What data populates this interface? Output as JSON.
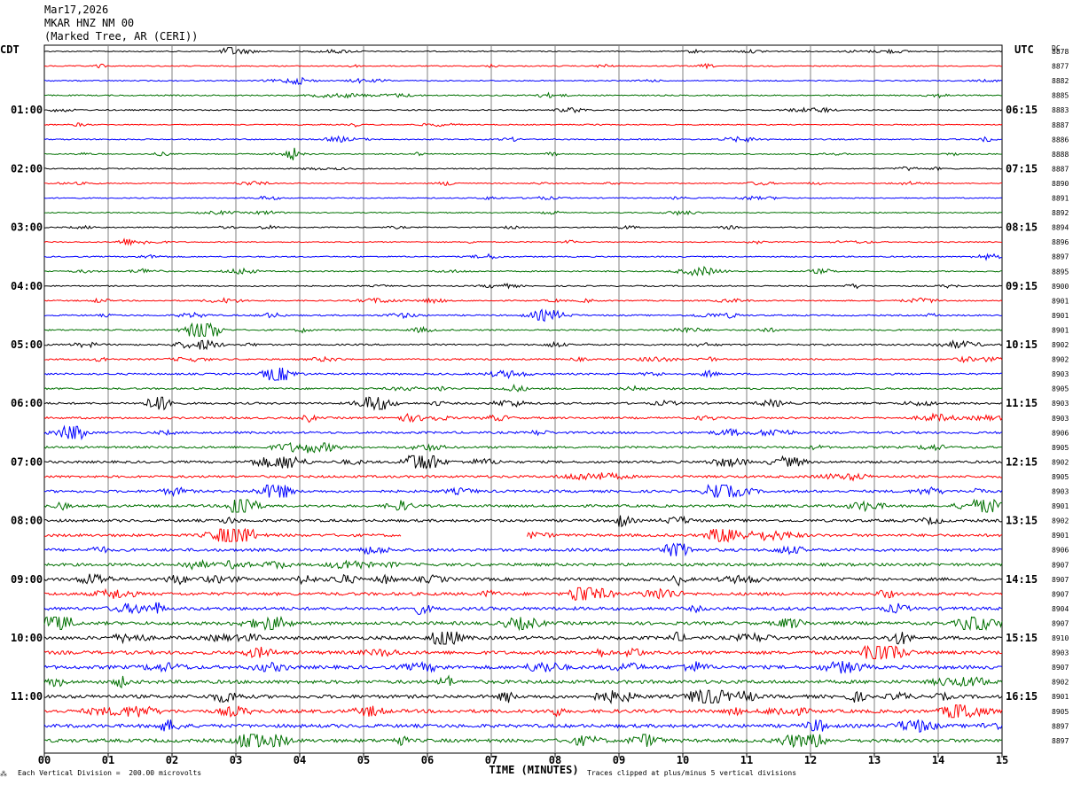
{
  "header": {
    "date": "Mar17,2026",
    "station": "MKAR HNZ NM 00",
    "location": "(Marked Tree, AR (CERI))"
  },
  "labels": {
    "left_tz": "CDT",
    "right_tz": "UTC",
    "dc": "DC",
    "footer_left": "Each Vertical Division =  200.00 microvolts",
    "footer_right": "Traces clipped at plus/minus 5 vertical divisions"
  },
  "colors": [
    "#000000",
    "#ff0000",
    "#0000ff",
    "#007000"
  ],
  "chart_data": {
    "type": "line",
    "title": "MKAR HNZ NM 00",
    "xlabel": "TIME (MINUTES)",
    "xlim": [
      0,
      15
    ],
    "x_ticks": [
      "00",
      "01",
      "02",
      "03",
      "04",
      "05",
      "06",
      "07",
      "08",
      "09",
      "10",
      "11",
      "12",
      "13",
      "14",
      "15"
    ],
    "left_time_labels": [
      "01:00",
      "02:00",
      "03:00",
      "04:00",
      "05:00",
      "06:00",
      "07:00",
      "08:00",
      "09:00",
      "10:00",
      "11:00"
    ],
    "right_time_labels": [
      "06:15",
      "07:15",
      "08:15",
      "09:15",
      "10:15",
      "11:15",
      "12:15",
      "13:15",
      "14:15",
      "15:15",
      "16:15"
    ],
    "dc_offsets": [
      "8878",
      "8877",
      "8882",
      "8885",
      "8883",
      "8887",
      "8886",
      "8888",
      "8887",
      "8890",
      "8891",
      "8892",
      "8894",
      "8896",
      "8897",
      "8895",
      "8900",
      "8901",
      "8901",
      "8901",
      "8902",
      "8902",
      "8903",
      "8905",
      "8903",
      "8903",
      "8906",
      "8905",
      "8902",
      "8905",
      "8903",
      "8901",
      "8902",
      "8901",
      "8906",
      "8907",
      "8907",
      "8907",
      "8904",
      "8907",
      "8910",
      "8903",
      "8907",
      "8902",
      "8901",
      "8905",
      "8897",
      "8897"
    ],
    "amplitude": [
      0.6,
      0.6,
      0.6,
      0.7,
      0.7,
      0.6,
      0.7,
      0.6,
      0.6,
      0.6,
      0.6,
      0.6,
      0.6,
      0.6,
      0.7,
      0.7,
      0.7,
      0.7,
      0.8,
      0.8,
      0.9,
      0.9,
      1.0,
      1.0,
      1.1,
      1.1,
      1.2,
      1.2,
      1.3,
      1.3,
      1.4,
      1.4,
      1.5,
      1.5,
      1.6,
      1.6,
      1.7,
      1.7,
      1.8,
      1.8,
      1.9,
      1.9,
      1.9,
      1.9,
      1.9,
      1.9,
      1.9,
      1.9
    ]
  }
}
